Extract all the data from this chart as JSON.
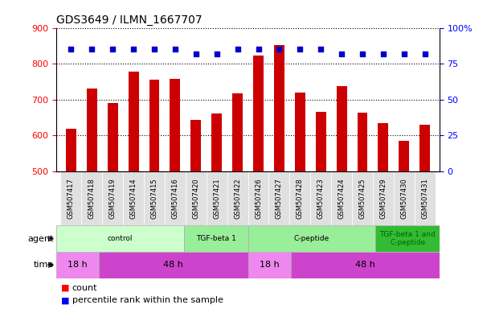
{
  "title": "GDS3649 / ILMN_1667707",
  "samples": [
    "GSM507417",
    "GSM507418",
    "GSM507419",
    "GSM507414",
    "GSM507415",
    "GSM507416",
    "GSM507420",
    "GSM507421",
    "GSM507422",
    "GSM507426",
    "GSM507427",
    "GSM507428",
    "GSM507423",
    "GSM507424",
    "GSM507425",
    "GSM507429",
    "GSM507430",
    "GSM507431"
  ],
  "counts": [
    619,
    730,
    690,
    778,
    756,
    759,
    644,
    662,
    717,
    822,
    852,
    720,
    665,
    737,
    664,
    635,
    586,
    630
  ],
  "percentile_pct": [
    85,
    85,
    85,
    85,
    85,
    85,
    82,
    82,
    85,
    85,
    85,
    85,
    85,
    82,
    82,
    82,
    82,
    82
  ],
  "ylim_left": [
    500,
    900
  ],
  "ylim_right": [
    0,
    100
  ],
  "yticks_left": [
    500,
    600,
    700,
    800,
    900
  ],
  "yticks_right": [
    0,
    25,
    50,
    75,
    100
  ],
  "bar_color": "#cc0000",
  "dot_color": "#0000cc",
  "agent_groups": [
    {
      "label": "control",
      "start": 0,
      "end": 6,
      "color": "#ccffcc",
      "text_color": "black"
    },
    {
      "label": "TGF-beta 1",
      "start": 6,
      "end": 9,
      "color": "#99ee99",
      "text_color": "black"
    },
    {
      "label": "C-peptide",
      "start": 9,
      "end": 15,
      "color": "#99ee99",
      "text_color": "black"
    },
    {
      "label": "TGF-beta 1 and\nC-peptide",
      "start": 15,
      "end": 18,
      "color": "#33bb33",
      "text_color": "darkgreen"
    }
  ],
  "time_groups": [
    {
      "label": "18 h",
      "start": 0,
      "end": 2,
      "color": "#ee88ee"
    },
    {
      "label": "48 h",
      "start": 2,
      "end": 9,
      "color": "#cc44cc"
    },
    {
      "label": "18 h",
      "start": 9,
      "end": 11,
      "color": "#ee88ee"
    },
    {
      "label": "48 h",
      "start": 11,
      "end": 18,
      "color": "#cc44cc"
    }
  ]
}
